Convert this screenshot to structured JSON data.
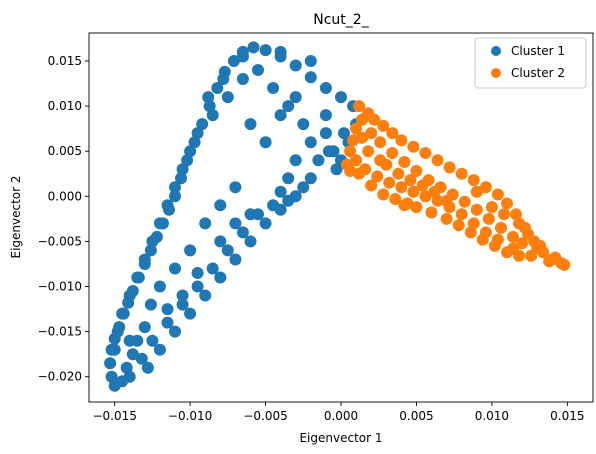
{
  "chart_data": {
    "type": "scatter",
    "title": "Ncut_2_",
    "xlabel": "Eigenvector 1",
    "ylabel": "Eigenvector 2",
    "xlim": [
      -0.0167,
      0.0167
    ],
    "ylim": [
      -0.0228,
      0.0181
    ],
    "xticks": [
      -0.015,
      -0.01,
      -0.005,
      0.0,
      0.005,
      0.01,
      0.015
    ],
    "xtick_labels": [
      "−0.015",
      "−0.010",
      "−0.005",
      "0.000",
      "0.005",
      "0.010",
      "0.015"
    ],
    "yticks": [
      -0.02,
      -0.015,
      -0.01,
      -0.005,
      0.0,
      0.005,
      0.01,
      0.015
    ],
    "ytick_labels": [
      "−0.020",
      "−0.015",
      "−0.010",
      "−0.005",
      "0.000",
      "0.005",
      "0.010",
      "0.015"
    ],
    "grid": false,
    "legend_position": "top-right",
    "series": [
      {
        "name": "Cluster 1",
        "color": "#1f77b4",
        "points": [
          [
            -0.015,
            -0.021
          ],
          [
            -0.0152,
            -0.02
          ],
          [
            -0.0153,
            -0.0185
          ],
          [
            -0.0152,
            -0.017
          ],
          [
            -0.015,
            -0.0158
          ],
          [
            -0.0147,
            -0.0145
          ],
          [
            -0.0144,
            -0.013
          ],
          [
            -0.0141,
            -0.0118
          ],
          [
            -0.0138,
            -0.0105
          ],
          [
            -0.0134,
            -0.009
          ],
          [
            -0.013,
            -0.0075
          ],
          [
            -0.0126,
            -0.006
          ],
          [
            -0.0122,
            -0.0045
          ],
          [
            -0.0118,
            -0.003
          ],
          [
            -0.0114,
            -0.0015
          ],
          [
            -0.011,
            0.0
          ],
          [
            -0.0106,
            0.002
          ],
          [
            -0.0102,
            0.004
          ],
          [
            -0.0097,
            0.006
          ],
          [
            -0.0092,
            0.008
          ],
          [
            -0.0087,
            0.01
          ],
          [
            -0.0082,
            0.012
          ],
          [
            -0.0077,
            0.0138
          ],
          [
            -0.0071,
            0.015
          ],
          [
            -0.0065,
            0.016
          ],
          [
            -0.0058,
            0.0165
          ],
          [
            -0.005,
            0.0162
          ],
          [
            -0.004,
            0.0155
          ],
          [
            -0.003,
            0.0145
          ],
          [
            -0.002,
            0.0132
          ],
          [
            -0.001,
            0.012
          ],
          [
            0.0,
            0.011
          ],
          [
            0.0008,
            0.01
          ],
          [
            0.001,
            0.008
          ],
          [
            0.0005,
            0.006
          ],
          [
            0.0,
            0.004
          ],
          [
            -0.0005,
            0.005
          ],
          [
            -0.001,
            0.007
          ],
          [
            -0.002,
            0.006
          ],
          [
            -0.003,
            0.004
          ],
          [
            -0.0035,
            0.002
          ],
          [
            -0.004,
            0.0005
          ],
          [
            -0.0045,
            -0.001
          ],
          [
            -0.0055,
            -0.002
          ],
          [
            -0.0065,
            -0.004
          ],
          [
            -0.0075,
            -0.006
          ],
          [
            -0.0085,
            -0.008
          ],
          [
            -0.0095,
            -0.01
          ],
          [
            -0.0105,
            -0.012
          ],
          [
            -0.0115,
            -0.014
          ],
          [
            -0.0125,
            -0.016
          ],
          [
            -0.0132,
            -0.018
          ],
          [
            -0.014,
            -0.02
          ],
          [
            -0.0145,
            -0.0205
          ],
          [
            -0.0128,
            -0.019
          ],
          [
            -0.012,
            -0.017
          ],
          [
            -0.011,
            -0.015
          ],
          [
            -0.01,
            -0.013
          ],
          [
            -0.009,
            -0.011
          ],
          [
            -0.008,
            -0.009
          ],
          [
            -0.007,
            -0.007
          ],
          [
            -0.006,
            -0.005
          ],
          [
            -0.005,
            -0.003
          ],
          [
            -0.004,
            -0.0015
          ],
          [
            -0.003,
            0.0
          ],
          [
            -0.002,
            0.002
          ],
          [
            -0.0015,
            0.004
          ],
          [
            -0.0025,
            0.008
          ],
          [
            -0.0035,
            0.01
          ],
          [
            -0.0045,
            0.012
          ],
          [
            -0.0055,
            0.014
          ],
          [
            -0.0065,
            0.013
          ],
          [
            -0.0075,
            0.011
          ],
          [
            -0.0085,
            0.009
          ],
          [
            -0.0095,
            0.007
          ],
          [
            -0.01,
            0.005
          ],
          [
            -0.0105,
            0.003
          ],
          [
            -0.011,
            0.001
          ],
          [
            -0.0115,
            -0.001
          ],
          [
            -0.012,
            -0.003
          ],
          [
            -0.0125,
            -0.005
          ],
          [
            -0.013,
            -0.007
          ],
          [
            -0.0135,
            -0.009
          ],
          [
            -0.014,
            -0.011
          ],
          [
            -0.0145,
            -0.013
          ],
          [
            -0.0148,
            -0.015
          ],
          [
            -0.015,
            -0.017
          ],
          [
            -0.0135,
            -0.016
          ],
          [
            -0.0138,
            -0.0175
          ],
          [
            -0.0142,
            -0.019
          ],
          [
            -0.006,
            0.008
          ],
          [
            -0.005,
            0.006
          ],
          [
            -0.004,
            0.009
          ],
          [
            -0.003,
            0.011
          ],
          [
            -0.001,
            0.009
          ],
          [
            0.0002,
            0.007
          ],
          [
            -0.0025,
            0.001
          ],
          [
            -0.0035,
            -0.0005
          ],
          [
            -0.0003,
            0.003
          ],
          [
            -0.0008,
            0.005
          ],
          [
            -0.007,
            0.001
          ],
          [
            -0.008,
            -0.001
          ],
          [
            -0.009,
            -0.003
          ],
          [
            -0.01,
            -0.006
          ],
          [
            -0.011,
            -0.008
          ],
          [
            -0.012,
            -0.01
          ],
          [
            -0.0126,
            -0.012
          ],
          [
            -0.006,
            -0.002
          ],
          [
            -0.007,
            -0.003
          ],
          [
            -0.008,
            -0.005
          ],
          [
            -0.0095,
            -0.0085
          ],
          [
            -0.0105,
            -0.011
          ],
          [
            -0.0115,
            -0.0125
          ],
          [
            -0.013,
            -0.0145
          ],
          [
            -0.014,
            -0.016
          ],
          [
            -0.002,
            0.015
          ],
          [
            -0.004,
            0.016
          ],
          [
            -0.0065,
            0.0155
          ],
          [
            -0.0078,
            0.013
          ],
          [
            -0.0088,
            0.011
          ]
        ]
      },
      {
        "name": "Cluster 2",
        "color": "#ff7f0e",
        "points": [
          [
            0.0012,
            0.01
          ],
          [
            0.0018,
            0.0092
          ],
          [
            0.0022,
            0.0085
          ],
          [
            0.0028,
            0.0078
          ],
          [
            0.0034,
            0.007
          ],
          [
            0.004,
            0.0062
          ],
          [
            0.0048,
            0.0055
          ],
          [
            0.0056,
            0.0048
          ],
          [
            0.0064,
            0.004
          ],
          [
            0.0072,
            0.0032
          ],
          [
            0.008,
            0.0025
          ],
          [
            0.0088,
            0.0018
          ],
          [
            0.0096,
            0.001
          ],
          [
            0.0104,
            0.0002
          ],
          [
            0.011,
            -0.0008
          ],
          [
            0.0116,
            -0.002
          ],
          [
            0.0122,
            -0.0035
          ],
          [
            0.0128,
            -0.005
          ],
          [
            0.0134,
            -0.0062
          ],
          [
            0.014,
            -0.007
          ],
          [
            0.0146,
            -0.0074
          ],
          [
            0.0148,
            -0.0076
          ],
          [
            0.0138,
            -0.0072
          ],
          [
            0.0126,
            -0.0066
          ],
          [
            0.0114,
            -0.0058
          ],
          [
            0.0104,
            -0.0048
          ],
          [
            0.0096,
            -0.004
          ],
          [
            0.0088,
            -0.003
          ],
          [
            0.008,
            -0.002
          ],
          [
            0.0072,
            -0.0012
          ],
          [
            0.0064,
            -0.0005
          ],
          [
            0.0056,
            0.0
          ],
          [
            0.0048,
            0.0005
          ],
          [
            0.004,
            0.001
          ],
          [
            0.0032,
            0.0015
          ],
          [
            0.0024,
            0.0022
          ],
          [
            0.0016,
            0.003
          ],
          [
            0.001,
            0.004
          ],
          [
            0.0006,
            0.005
          ],
          [
            0.0008,
            0.0062
          ],
          [
            0.001,
            0.0075
          ],
          [
            0.0014,
            0.0085
          ],
          [
            0.002,
            0.007
          ],
          [
            0.0026,
            0.006
          ],
          [
            0.0034,
            0.0048
          ],
          [
            0.0042,
            0.0038
          ],
          [
            0.005,
            0.0028
          ],
          [
            0.0058,
            0.0018
          ],
          [
            0.0066,
            0.001
          ],
          [
            0.0074,
            0.0002
          ],
          [
            0.0082,
            -0.0006
          ],
          [
            0.009,
            -0.0015
          ],
          [
            0.0098,
            -0.0025
          ],
          [
            0.0106,
            -0.0035
          ],
          [
            0.0114,
            -0.0045
          ],
          [
            0.012,
            -0.0052
          ],
          [
            0.013,
            -0.0058
          ],
          [
            0.0142,
            -0.0068
          ],
          [
            0.0004,
            0.0035
          ],
          [
            0.0012,
            0.0025
          ],
          [
            0.002,
            0.0012
          ],
          [
            0.0028,
            0.0002
          ],
          [
            0.0036,
            -0.0003
          ],
          [
            0.0044,
            -0.0008
          ],
          [
            0.005,
            -0.0012
          ],
          [
            0.006,
            -0.0018
          ],
          [
            0.007,
            -0.0025
          ],
          [
            0.0078,
            -0.0032
          ],
          [
            0.0086,
            -0.004
          ],
          [
            0.0094,
            -0.0048
          ],
          [
            0.0102,
            -0.0055
          ],
          [
            0.011,
            -0.0062
          ],
          [
            0.0118,
            -0.0066
          ],
          [
            0.0006,
            0.0028
          ],
          [
            0.0042,
            -0.001
          ],
          [
            0.003,
            0.0035
          ],
          [
            0.0038,
            0.0025
          ],
          [
            0.0046,
            0.0018
          ],
          [
            0.0054,
            0.0012
          ],
          [
            0.0062,
            0.0005
          ],
          [
            0.007,
            -0.0005
          ],
          [
            0.009,
            0.0005
          ],
          [
            0.01,
            -0.0012
          ],
          [
            0.0108,
            -0.002
          ],
          [
            0.0118,
            -0.003
          ],
          [
            0.0124,
            -0.0042
          ],
          [
            0.0132,
            -0.0055
          ],
          [
            0.0018,
            0.005
          ],
          [
            0.0026,
            0.004
          ],
          [
            0.0014,
            0.0065
          ]
        ]
      }
    ]
  }
}
